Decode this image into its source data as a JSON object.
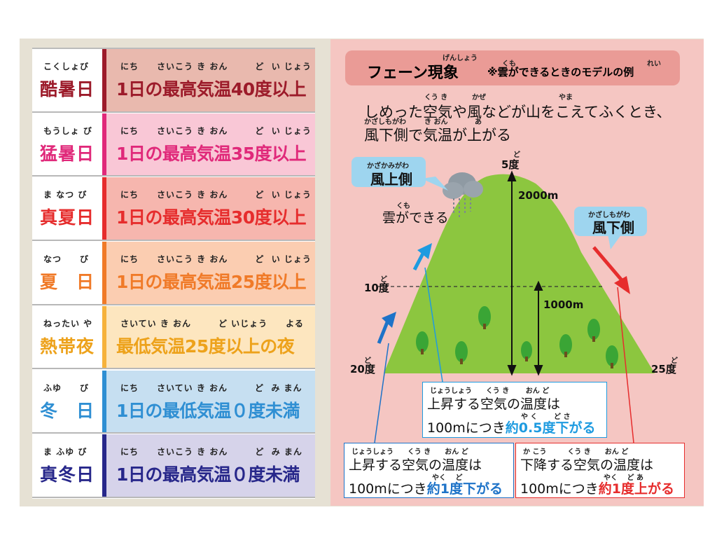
{
  "rows": [
    {
      "ruby_name": "こくしょび",
      "name": "酷暑日",
      "ruby_desc": "にち　　さいこう き おん　　　ど  い じょう",
      "desc": "1日の最高気温40度以上",
      "bar": "#9c1b2a",
      "bg": "#e9b9ae",
      "color": "#9c1b2a"
    },
    {
      "ruby_name": "もうしょ び",
      "name": "猛暑日",
      "ruby_desc": "にち　　さいこう き おん　　　ど  い じょう",
      "desc": "1日の最高気温35度以上",
      "bar": "#e0297a",
      "bg": "#f9c7d6",
      "color": "#e0297a"
    },
    {
      "ruby_name": "ま なつ び",
      "name": "真夏日",
      "ruby_desc": "にち　　さいこう き おん　　　ど  い じょう",
      "desc": "1日の最高気温30度以上",
      "bar": "#e62d2d",
      "bg": "#f6b6ae",
      "color": "#e62d2d"
    },
    {
      "ruby_name": "なつ　　び",
      "name": "夏　日",
      "ruby_desc": "にち　　さいこう き おん　　　ど  い じょう",
      "desc": "1日の最高気温25度以上",
      "bar": "#f07a28",
      "bg": "#fbcdb1",
      "color": "#f07a28"
    },
    {
      "ruby_name": "ねったい や",
      "name": "熱帯夜",
      "ruby_desc": "さいてい き おん　　　ど いじょう　　よる",
      "desc": "最低気温25度以上の夜",
      "bar": "#f6b23c",
      "bg": "#fde6bf",
      "color": "#eda21b"
    },
    {
      "ruby_name": "ふゆ　　び",
      "name": "冬　日",
      "ruby_desc": "にち　　さいてい き おん　　　ど  み まん",
      "desc": "1日の最低気温０度未満",
      "bar": "#2f8fd3",
      "bg": "#c6dff1",
      "color": "#2f8fd3"
    },
    {
      "ruby_name": "ま ふゆ び",
      "name": "真冬日",
      "ruby_desc": "にち　　さいこう き おん　　　ど  み まん",
      "desc": "1日の最高気温０度未満",
      "bar": "#27278a",
      "bg": "#d6d3ea",
      "color": "#27278a"
    }
  ],
  "right": {
    "title": "フェーン現象",
    "title_ruby": "げんしょう",
    "subtitle": "※雲ができるときのモデルの例",
    "subtitle_ruby_kumo": "くも",
    "subtitle_ruby_rei": "れい",
    "lead_line1": "しめった空気や風などが山をこえてふくとき、",
    "lead_line1_ruby_kuuki": "くう き",
    "lead_line1_ruby_kaze": "かぜ",
    "lead_line1_ruby_yama": "やま",
    "lead_line2": "風下側で気温が上がる",
    "lead_line2_ruby_kazashimogawa": "かざしもがわ",
    "lead_line2_ruby_kion": "き おん",
    "lead_line2_ruby_a": "あ",
    "windward_ruby": "かざかみがわ",
    "windward": "風上側",
    "leeward_ruby": "かざしもがわ",
    "leeward": "風下側",
    "cloud_ruby": "くも",
    "cloud_label": "雲ができる",
    "top_ruby": "ど",
    "top_temp": "5度",
    "mid_ruby": "ど",
    "mid_temp": "10度",
    "left_ruby": "ど",
    "left_temp": "20度",
    "right_ruby": "ど",
    "right_temp": "25度",
    "height_2000": "2000m",
    "height_1000": "1000m",
    "box1": {
      "ruby1": "じょうしょう　　くう き　　 おん ど",
      "line1": "上昇する空気の温度は",
      "ruby2": "や く　　 ど  さ",
      "line2a": "100mにつき",
      "line2b": "約0.5度下がる",
      "color": "#1e9be0"
    },
    "box2": {
      "ruby1": "じょうしょう　　くう き　　おん ど",
      "line1": "上昇する空気の温度は",
      "ruby2": "やく　 ど",
      "line2a": "100mにつき",
      "line2b": "約1度下がる",
      "color": "#1e73c8"
    },
    "box3": {
      "ruby1": "か こう　　　くう き　　おん ど",
      "line1": "下降する空気の温度は",
      "ruby2": "やく　 ど あ",
      "line2a": "100mにつき",
      "line2b": "約1度上がる",
      "color": "#e62d2d"
    }
  }
}
